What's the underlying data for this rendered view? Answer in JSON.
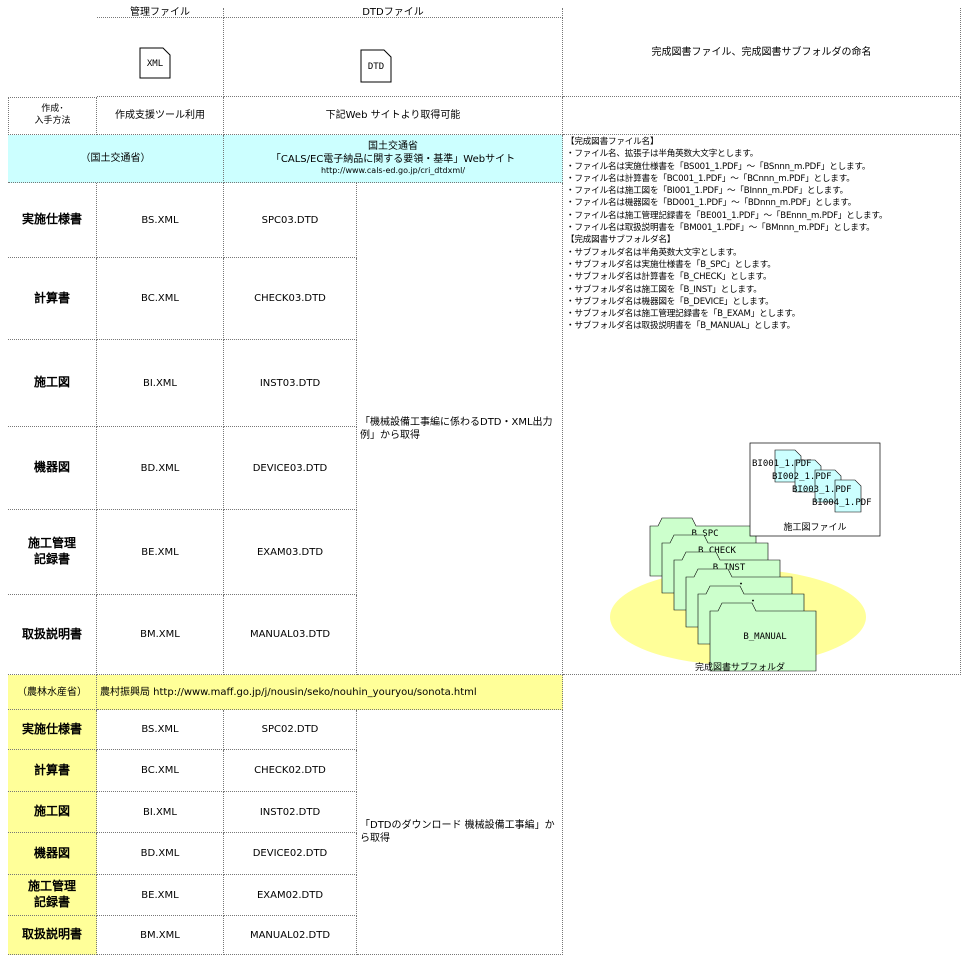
{
  "header": {
    "file_col": "管理ファイル",
    "dtd_col": "DTDファイル",
    "xml_icon": "XML",
    "dtd_icon": "DTD",
    "naming_title": "完成図書ファイル、完成図書サブフォルダの命名"
  },
  "method": {
    "label": [
      "作成･",
      "入手方法"
    ],
    "tool": "作成支援ツール利用",
    "web": "下記Web サイトより取得可能"
  },
  "mlit": {
    "org": "（国土交通省）",
    "site": [
      "国土交通省",
      "「CALS/EC電子納品に関する要領・基準」Webサイト",
      "http://www.cals-ed.go.jp/cri_dtdxml/"
    ],
    "rows": [
      {
        "name": [
          "実施仕様書"
        ],
        "xml": "BS.XML",
        "dtd": "SPC03.DTD"
      },
      {
        "name": [
          "計算書"
        ],
        "xml": "BC.XML",
        "dtd": "CHECK03.DTD"
      },
      {
        "name": [
          "施工図"
        ],
        "xml": "BI.XML",
        "dtd": "INST03.DTD"
      },
      {
        "name": [
          "機器図"
        ],
        "xml": "BD.XML",
        "dtd": "DEVICE03.DTD"
      },
      {
        "name": [
          "施工管理",
          "記録書"
        ],
        "xml": "BE.XML",
        "dtd": "EXAM03.DTD"
      },
      {
        "name": [
          "取扱説明書"
        ],
        "xml": "BM.XML",
        "dtd": "MANUAL03.DTD"
      }
    ],
    "source": "「機械設備工事編に係わるDTD・XML出力例」から取得"
  },
  "naming": [
    "【完成図書ファイル名】",
    "・ファイル名、拡張子は半角英数大文字とします。",
    "・ファイル名は実施仕様書を「BS001_1.PDF」～「BSnnn_m.PDF」とします。",
    "・ファイル名は計算書を「BC001_1.PDF」～「BCnnn_m.PDF」とします。",
    "・ファイル名は施工図を「BI001_1.PDF」～「BInnn_m.PDF」とします。",
    "・ファイル名は機器図を「BD001_1.PDF」～「BDnnn_m.PDF」とします。",
    "・ファイル名は施工管理記録書を「BE001_1.PDF」～「BEnnn_m.PDF」とします。",
    "・ファイル名は取扱説明書を「BM001_1.PDF」～「BMnnn_m.PDF」とします。",
    "【完成図書サブフォルダ名】",
    "・サブフォルダ名は半角英数大文字とします。",
    "・サブフォルダ名は実施仕様書を「B_SPC」とします。",
    "・サブフォルダ名は計算書を「B_CHECK」とします。",
    "・サブフォルダ名は施工図を「B_INST」とします。",
    "・サブフォルダ名は機器図を「B_DEVICE」とします。",
    "・サブフォルダ名は施工管理記録書を「B_EXAM」とします。",
    "・サブフォルダ名は取扱説明書を「B_MANUAL」とします。"
  ],
  "diagram": {
    "files": [
      "BI001_1.PDF",
      "BI002_1.PDF",
      "BI003_1.PDF",
      "BI004_1.PDF"
    ],
    "file_label": "施工図ファイル",
    "folders": [
      "B_SPC",
      "B_CHECK",
      "B_INST",
      "・",
      "・",
      "B_MANUAL"
    ],
    "folder_label": "完成図書サブフォルダ"
  },
  "maff": {
    "org": "（農林水産省）",
    "site": "農村振興局 http://www.maff.go.jp/j/nousin/seko/nouhin_youryou/sonota.html",
    "rows": [
      {
        "name": [
          "実施仕様書"
        ],
        "xml": "BS.XML",
        "dtd": "SPC02.DTD"
      },
      {
        "name": [
          "計算書"
        ],
        "xml": "BC.XML",
        "dtd": "CHECK02.DTD"
      },
      {
        "name": [
          "施工図"
        ],
        "xml": "BI.XML",
        "dtd": "INST02.DTD"
      },
      {
        "name": [
          "機器図"
        ],
        "xml": "BD.XML",
        "dtd": "DEVICE02.DTD"
      },
      {
        "name": [
          "施工管理",
          "記録書"
        ],
        "xml": "BE.XML",
        "dtd": "EXAM02.DTD"
      },
      {
        "name": [
          "取扱説明書"
        ],
        "xml": "BM.XML",
        "dtd": "MANUAL02.DTD"
      }
    ],
    "source": "「DTDのダウンロード 機械設備工事編」から取得"
  }
}
